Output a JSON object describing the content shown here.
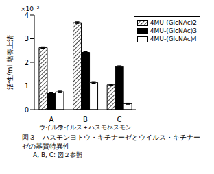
{
  "chart_data": {
    "type": "bar",
    "title": "図３　ハスモンヨトウ・キチナーゼとウイルス・キチナーゼの基質特異性",
    "subtitle": "A, B, C: 図２参照",
    "y_label": "活性/ml 培養上清",
    "annotations": [
      "×10⁻²"
    ],
    "categories": [
      "A ウイルス",
      "B ウイルス＋ハスモン",
      "C ハスモン"
    ],
    "series": [
      {
        "name": "4MU-(GlcNAc)2",
        "color": "#444444",
        "marker": "hatch",
        "values": [
          2.62,
          3.68,
          1.05
        ],
        "errors": [
          0.03,
          0.03,
          0.03
        ]
      },
      {
        "name": "4MU-(GlcNAc)3",
        "color": "#000000",
        "values": [
          0.68,
          2.42,
          1.82
        ],
        "errors": [
          0.03,
          0.03,
          0.03
        ]
      },
      {
        "name": "4MU-(GlcNAc)4",
        "color": "#ffffff",
        "values": [
          0.75,
          1.15,
          0.25
        ],
        "errors": [
          0.03,
          0.03,
          0.02
        ]
      }
    ],
    "ylim": [
      0,
      4
    ],
    "yticks": [
      0,
      1,
      2,
      3,
      4
    ],
    "legend": "upper right"
  }
}
